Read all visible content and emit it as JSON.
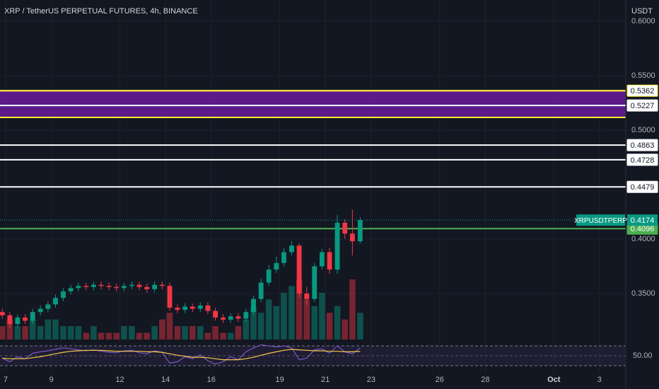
{
  "chart_data": {
    "type": "candlestick",
    "title": "XRP / TetherUS PERPETUAL FUTURES, 4h, BINANCE",
    "currency": "USDT",
    "x": [
      6.85,
      7.18,
      7.52,
      7.85,
      8.18,
      8.52,
      8.85,
      9.18,
      9.52,
      9.85,
      10.18,
      10.52,
      10.85,
      11.18,
      11.52,
      11.85,
      12.18,
      12.52,
      12.85,
      13.18,
      13.52,
      13.85,
      14.18,
      14.52,
      14.85,
      15.18,
      15.52,
      15.85,
      16.18,
      16.52,
      16.85,
      17.18,
      17.52,
      17.85,
      18.18,
      18.52,
      18.85,
      19.18,
      19.52,
      19.85,
      20.18,
      20.52,
      20.85,
      21.18,
      21.52,
      21.85,
      22.18,
      22.52
    ],
    "open": [
      0.333,
      0.33,
      0.322,
      0.328,
      0.325,
      0.333,
      0.336,
      0.34,
      0.346,
      0.352,
      0.355,
      0.357,
      0.356,
      0.358,
      0.357,
      0.356,
      0.355,
      0.357,
      0.358,
      0.356,
      0.354,
      0.358,
      0.357,
      0.337,
      0.335,
      0.338,
      0.336,
      0.339,
      0.334,
      0.328,
      0.326,
      0.329,
      0.327,
      0.333,
      0.345,
      0.36,
      0.372,
      0.378,
      0.388,
      0.394,
      0.35,
      0.345,
      0.375,
      0.388,
      0.372,
      0.415,
      0.405,
      0.398
    ],
    "high": [
      0.336,
      0.333,
      0.331,
      0.331,
      0.336,
      0.339,
      0.343,
      0.349,
      0.355,
      0.358,
      0.36,
      0.36,
      0.361,
      0.361,
      0.36,
      0.359,
      0.36,
      0.361,
      0.361,
      0.359,
      0.361,
      0.361,
      0.36,
      0.34,
      0.341,
      0.341,
      0.342,
      0.342,
      0.337,
      0.331,
      0.332,
      0.332,
      0.336,
      0.348,
      0.364,
      0.376,
      0.384,
      0.392,
      0.398,
      0.396,
      0.356,
      0.378,
      0.391,
      0.392,
      0.422,
      0.418,
      0.427,
      0.42
    ],
    "low": [
      0.327,
      0.318,
      0.319,
      0.322,
      0.322,
      0.33,
      0.333,
      0.337,
      0.343,
      0.349,
      0.352,
      0.353,
      0.353,
      0.354,
      0.353,
      0.352,
      0.352,
      0.354,
      0.353,
      0.351,
      0.351,
      0.354,
      0.334,
      0.332,
      0.332,
      0.333,
      0.333,
      0.331,
      0.325,
      0.323,
      0.323,
      0.324,
      0.324,
      0.33,
      0.342,
      0.357,
      0.369,
      0.375,
      0.385,
      0.346,
      0.34,
      0.342,
      0.372,
      0.368,
      0.368,
      0.4,
      0.385,
      0.396
    ],
    "close": [
      0.33,
      0.322,
      0.328,
      0.325,
      0.333,
      0.336,
      0.34,
      0.346,
      0.352,
      0.355,
      0.357,
      0.356,
      0.358,
      0.357,
      0.356,
      0.355,
      0.357,
      0.358,
      0.356,
      0.354,
      0.358,
      0.357,
      0.337,
      0.335,
      0.338,
      0.336,
      0.339,
      0.334,
      0.328,
      0.326,
      0.329,
      0.327,
      0.333,
      0.345,
      0.36,
      0.372,
      0.378,
      0.388,
      0.394,
      0.35,
      0.345,
      0.375,
      0.388,
      0.372,
      0.415,
      0.405,
      0.398,
      0.4174
    ],
    "volume": [
      2,
      3,
      2,
      2,
      3,
      2,
      3,
      3,
      2,
      2,
      2,
      1,
      2,
      1,
      1,
      1,
      2,
      2,
      1,
      1,
      2,
      3,
      4,
      2,
      2,
      2,
      2,
      1,
      2,
      1,
      1,
      2,
      3,
      5,
      4,
      6,
      5,
      7,
      8,
      9,
      6,
      5,
      7,
      4,
      5,
      3,
      9,
      4
    ],
    "up_color": "#089981",
    "down_color": "#f23645",
    "xlim": [
      6.75,
      34.15
    ],
    "xticks": [
      7,
      9,
      12,
      14,
      16,
      19,
      21,
      23,
      26,
      28,
      {
        "value": 31,
        "label": "Oct"
      },
      {
        "value": 33,
        "label": "3"
      }
    ],
    "ylim": [
      0.3078,
      0.6195
    ],
    "yticks": [
      {
        "value": 0.35,
        "label": "0.3500"
      },
      {
        "value": 0.4,
        "label": "0.4000"
      },
      {
        "value": 0.5,
        "label": "0.5000"
      },
      {
        "value": 0.55,
        "label": "0.5500"
      },
      {
        "value": 0.6,
        "label": "0.6000"
      }
    ],
    "grid": true,
    "band": {
      "from": 0.5117,
      "to": 0.5362,
      "color": "#6a1b9a",
      "edge_color": "#ffeb3b"
    },
    "levels": [
      {
        "value": 0.5362,
        "color": "#ffeb3b",
        "label_bg": "#ffffff"
      },
      {
        "value": 0.5227,
        "color": "#ffffff",
        "label_bg": "#ffffff"
      },
      {
        "value": 0.4863,
        "color": "#ffffff",
        "label_bg": "#ffffff"
      },
      {
        "value": 0.4728,
        "color": "#ffffff",
        "label_bg": "#ffffff"
      },
      {
        "value": 0.4479,
        "color": "#ffffff",
        "label_bg": "#ffffff"
      },
      {
        "value": 0.4096,
        "color": "#4caf50",
        "label_bg": "#4caf50"
      }
    ],
    "last": {
      "name": "XRPUSDTPERP",
      "value": 0.4174,
      "color": "#089981"
    },
    "rsi": {
      "values": [
        45,
        38,
        48,
        44,
        55,
        58,
        60,
        63,
        66,
        64,
        62,
        60,
        62,
        59,
        57,
        56,
        60,
        61,
        56,
        54,
        60,
        57,
        35,
        38,
        48,
        44,
        52,
        40,
        33,
        38,
        48,
        42,
        58,
        66,
        72,
        70,
        68,
        70,
        66,
        42,
        45,
        62,
        64,
        55,
        70,
        58,
        54,
        66
      ],
      "color": "#7e57c2",
      "ma": [
        45,
        44,
        44,
        44,
        46,
        48,
        51,
        54,
        57,
        59,
        60,
        61,
        61,
        61,
        60,
        59,
        59,
        59,
        59,
        58,
        58,
        57,
        54,
        51,
        49,
        47,
        47,
        46,
        44,
        42,
        42,
        42,
        44,
        47,
        51,
        55,
        58,
        61,
        63,
        62,
        61,
        60,
        60,
        59,
        59,
        58,
        58,
        59
      ],
      "ma_color": "#f7c948",
      "lim": [
        20,
        80
      ],
      "band": [
        30,
        70
      ],
      "ticks": [
        {
          "value": 50,
          "label": "50.00"
        }
      ]
    }
  }
}
